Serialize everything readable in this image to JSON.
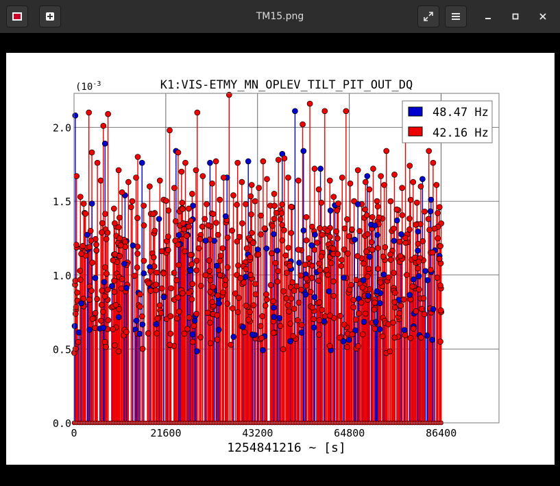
{
  "window": {
    "title": "TM15.png",
    "icons": {
      "app": "image-file-icon",
      "new": "new-tab-icon",
      "fullscreen": "fullscreen-icon",
      "menu": "hamburger-menu-icon",
      "minimize": "minimize-icon",
      "maximize": "maximize-icon",
      "close": "close-icon"
    }
  },
  "chart_data": {
    "type": "scatter",
    "style": "stem",
    "title": "K1:VIS-ETMY_MN_OPLEV_TILT_PIT_OUT_DQ",
    "xlabel": "1254841216 ~ [s]",
    "ylabel": "",
    "y_exponent_label": "(10",
    "y_exponent_sup": "-3",
    "xlim": [
      0,
      86400
    ],
    "xlim_plot_max": 100000,
    "ylim": [
      0,
      0.00223
    ],
    "xticks": [
      0,
      21600,
      43200,
      64800,
      86400
    ],
    "xtick_labels": [
      "0",
      "21600",
      "43200",
      "64800",
      "86400"
    ],
    "yticks": [
      0,
      0.0005,
      0.001,
      0.0015,
      0.002
    ],
    "ytick_labels": [
      "0.0",
      "0.5",
      "1.0",
      "1.5",
      "2.0"
    ],
    "grid": true,
    "legend_position": "top-right",
    "series": [
      {
        "name": "48.47 Hz",
        "color": "#0000cc",
        "values": [
          [
            300,
            0.00208
          ],
          [
            7300,
            0.00189
          ],
          [
            16000,
            0.00176
          ],
          [
            24000,
            0.00184
          ],
          [
            32000,
            0.00176
          ],
          [
            36000,
            0.00166
          ],
          [
            41000,
            0.00177
          ],
          [
            49000,
            0.00182
          ],
          [
            52000,
            0.00211
          ],
          [
            54000,
            0.00184
          ],
          [
            58000,
            0.00172
          ],
          [
            69000,
            0.00167
          ],
          [
            82000,
            0.00165
          ],
          [
            2500,
            0.00142
          ],
          [
            12000,
            0.00154
          ],
          [
            20000,
            0.00138
          ],
          [
            28000,
            0.00147
          ],
          [
            45000,
            0.00131
          ],
          [
            62000,
            0.00146
          ],
          [
            76000,
            0.00137
          ],
          [
            84000,
            0.00151
          ],
          [
            5000,
            0.00098
          ],
          [
            18000,
            0.00091
          ],
          [
            34000,
            0.00084
          ],
          [
            47000,
            0.00078
          ],
          [
            60000,
            0.00089
          ],
          [
            72000,
            0.00081
          ],
          [
            80000,
            0.00074
          ],
          [
            86000,
            0.00113
          ]
        ]
      },
      {
        "name": "42.16 Hz",
        "color": "#ee0000",
        "values": [
          [
            3500,
            0.0021
          ],
          [
            8000,
            0.00209
          ],
          [
            15000,
            0.0018
          ],
          [
            22500,
            0.00198
          ],
          [
            29000,
            0.0021
          ],
          [
            36500,
            0.00222
          ],
          [
            44500,
            0.00177
          ],
          [
            49500,
            0.00179
          ],
          [
            53800,
            0.00202
          ],
          [
            55500,
            0.00216
          ],
          [
            59000,
            0.00211
          ],
          [
            64000,
            0.00211
          ],
          [
            73500,
            0.00184
          ],
          [
            78000,
            0.00195
          ],
          [
            83500,
            0.00184
          ],
          [
            600,
            0.00167
          ],
          [
            1500,
            0.00153
          ],
          [
            2500,
            0.00142
          ],
          [
            4200,
            0.00183
          ],
          [
            5500,
            0.00176
          ],
          [
            6300,
            0.00164
          ],
          [
            6900,
            0.00201
          ],
          [
            9400,
            0.00145
          ],
          [
            10500,
            0.00171
          ],
          [
            11300,
            0.00156
          ],
          [
            12800,
            0.00163
          ],
          [
            13700,
            0.0015
          ],
          [
            14600,
            0.00166
          ],
          [
            16400,
            0.00147
          ],
          [
            17800,
            0.0016
          ],
          [
            19000,
            0.00142
          ],
          [
            20200,
            0.00164
          ],
          [
            21100,
            0.00151
          ],
          [
            23600,
            0.00159
          ],
          [
            24500,
            0.00183
          ],
          [
            25300,
            0.0017
          ],
          [
            26200,
            0.00176
          ],
          [
            27000,
            0.00145
          ],
          [
            27800,
            0.00155
          ],
          [
            28700,
            0.00171
          ],
          [
            30300,
            0.00167
          ],
          [
            31200,
            0.00148
          ],
          [
            32500,
            0.00162
          ],
          [
            33400,
            0.00177
          ],
          [
            34300,
            0.00151
          ],
          [
            35200,
            0.00166
          ],
          [
            37500,
            0.00154
          ],
          [
            38500,
            0.00176
          ],
          [
            39500,
            0.00163
          ],
          [
            40400,
            0.00148
          ],
          [
            41800,
            0.00161
          ],
          [
            42600,
            0.0015
          ],
          [
            43500,
            0.00159
          ],
          [
            45400,
            0.00165
          ],
          [
            46200,
            0.00147
          ],
          [
            47100,
            0.00155
          ],
          [
            48100,
            0.00178
          ],
          [
            50400,
            0.00166
          ],
          [
            51300,
            0.00146
          ],
          [
            52800,
            0.00164
          ],
          [
            56600,
            0.00172
          ],
          [
            57600,
            0.00158
          ],
          [
            58200,
            0.00149
          ],
          [
            60200,
            0.00164
          ],
          [
            61100,
            0.00153
          ],
          [
            62000,
            0.00145
          ],
          [
            63100,
            0.00166
          ],
          [
            65000,
            0.00162
          ],
          [
            65900,
            0.0015
          ],
          [
            66800,
            0.00171
          ],
          [
            67700,
            0.00148
          ],
          [
            68600,
            0.00163
          ],
          [
            69500,
            0.00158
          ],
          [
            70400,
            0.00172
          ],
          [
            71300,
            0.0015
          ],
          [
            72200,
            0.00167
          ],
          [
            73000,
            0.00161
          ],
          [
            74500,
            0.0015
          ],
          [
            75400,
            0.00168
          ],
          [
            76300,
            0.00144
          ],
          [
            77200,
            0.00159
          ],
          [
            79000,
            0.00174
          ],
          [
            79800,
            0.00163
          ],
          [
            80700,
            0.00149
          ],
          [
            81600,
            0.0016
          ],
          [
            82500,
            0.00143
          ],
          [
            84500,
            0.00176
          ],
          [
            85300,
            0.00161
          ],
          [
            86000,
            0.00146
          ],
          [
            86400,
            0.00135
          ],
          [
            86300,
            0.00108
          ],
          [
            86200,
            0.00055
          ],
          [
            86400,
            0.00075
          ],
          [
            86350,
            0.00091
          ]
        ]
      }
    ]
  }
}
